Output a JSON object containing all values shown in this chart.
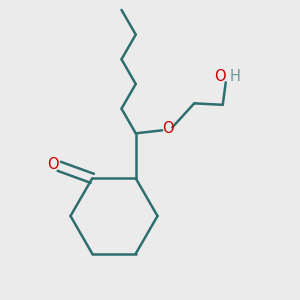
{
  "background_color": "#ebebeb",
  "bond_color": "#2d6e6e",
  "o_color": "#cc0000",
  "h_color": "#6a9a9a",
  "line_width": 1.8,
  "figsize": [
    3.0,
    3.0
  ],
  "dpi": 100,
  "xlim": [
    0.0,
    1.0
  ],
  "ylim": [
    0.0,
    1.0
  ]
}
